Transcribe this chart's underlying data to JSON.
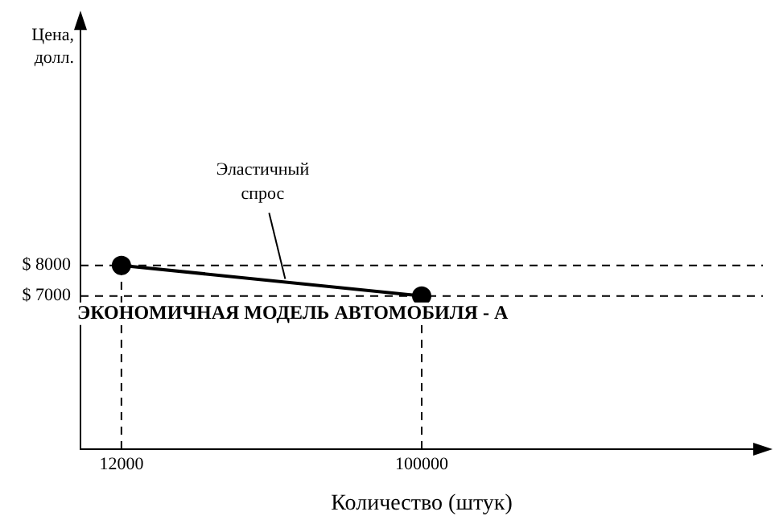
{
  "chart_data": {
    "type": "line",
    "xlabel": "Количество (штук)",
    "ylabel": "Цена,\nдолл.",
    "x": [
      12000,
      100000
    ],
    "series": [
      {
        "color": "#000000",
        "values": [
          8000,
          7000
        ]
      }
    ],
    "marker": "circle",
    "line_style": "solid",
    "grid": false,
    "legend": false,
    "xlim": [
      0,
      200000
    ],
    "ylim": [
      2000,
      16000
    ],
    "xticks": [
      12000,
      100000
    ],
    "yticks": [
      {
        "value": 8000,
        "label": "$ 8000"
      },
      {
        "value": 7000,
        "label": "$ 7000"
      }
    ],
    "ref_lines": [
      {
        "axis": "x",
        "value": 12000,
        "line_style": "dashed"
      },
      {
        "axis": "x",
        "value": 100000,
        "line_style": "dashed"
      },
      {
        "axis": "y",
        "value": 8000,
        "line_style": "dashed"
      },
      {
        "axis": "y",
        "value": 7000,
        "line_style": "dashed"
      }
    ],
    "annotations": [
      {
        "text": "Эластичный\nспрос",
        "x": 60000,
        "y": 7450
      },
      "ЭКОНОМИЧНАЯ МОДЕЛЬ АВТОМОБИЛЯ - А"
    ]
  }
}
